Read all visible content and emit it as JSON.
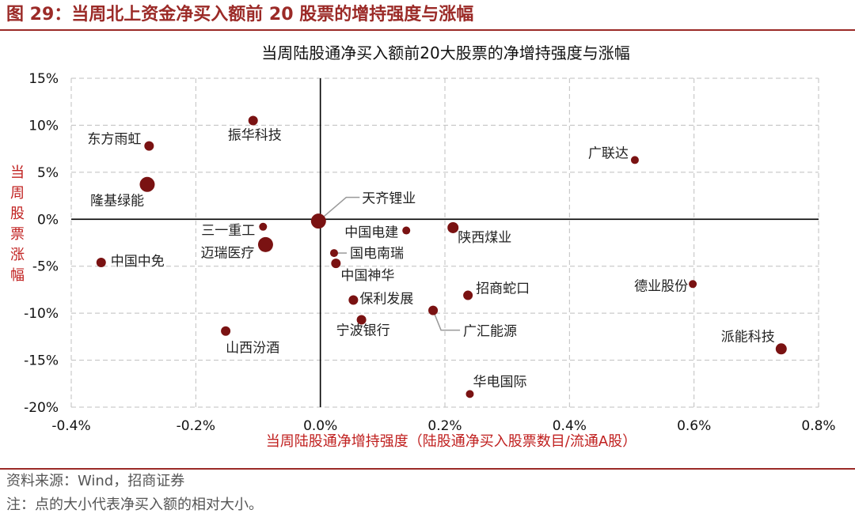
{
  "figure": {
    "title": "图 29：当周北上资金净买入额前 20 股票的增持强度与涨幅",
    "source": "资料来源：Wind，招商证券",
    "note": "注：点的大小代表净买入额的相对大小。"
  },
  "chart_data": {
    "type": "scatter",
    "title": "当周陆股通净买入额前20大股票的净增持强度与涨幅",
    "xlabel": "当周陆股通净增持强度（陆股通净买入股票数目/流通A股）",
    "ylabel": "当周股票涨幅",
    "xlim": [
      -0.4,
      0.8
    ],
    "ylim": [
      -20,
      15
    ],
    "x_ticks": [
      "-0.4%",
      "-0.2%",
      "0.0%",
      "0.2%",
      "0.4%",
      "0.6%",
      "0.8%"
    ],
    "y_ticks": [
      "15%",
      "10%",
      "5%",
      "0%",
      "-5%",
      "-10%",
      "-15%",
      "-20%"
    ],
    "grid": true,
    "colors": {
      "point": "#7a1212",
      "label": "#222222",
      "title_red": "#c0201f",
      "grid": "#bfbfbf"
    },
    "points": [
      {
        "label": "东方雨虹",
        "x": -0.275,
        "y": 7.8,
        "size": 1
      },
      {
        "label": "振华科技",
        "x": -0.108,
        "y": 10.5,
        "size": 1
      },
      {
        "label": "广联达",
        "x": 0.505,
        "y": 6.3,
        "size": 0.7
      },
      {
        "label": "隆基绿能",
        "x": -0.278,
        "y": 3.7,
        "size": 2
      },
      {
        "label": "天齐锂业",
        "x": -0.003,
        "y": -0.2,
        "size": 2
      },
      {
        "label": "三一重工",
        "x": -0.092,
        "y": -0.8,
        "size": 0.7
      },
      {
        "label": "迈瑞医疗",
        "x": -0.088,
        "y": -2.7,
        "size": 2
      },
      {
        "label": "中国中免",
        "x": -0.352,
        "y": -4.6,
        "size": 1
      },
      {
        "label": "中国电建",
        "x": 0.138,
        "y": -1.2,
        "size": 0.7
      },
      {
        "label": "国电南瑞",
        "x": 0.022,
        "y": -3.6,
        "size": 0.7
      },
      {
        "label": "中国神华",
        "x": 0.025,
        "y": -4.7,
        "size": 1
      },
      {
        "label": "陕西煤业",
        "x": 0.213,
        "y": -0.9,
        "size": 1.4
      },
      {
        "label": "招商蛇口",
        "x": 0.237,
        "y": -8.1,
        "size": 1
      },
      {
        "label": "德业股份",
        "x": 0.598,
        "y": -6.9,
        "size": 0.7
      },
      {
        "label": "保利发展",
        "x": 0.053,
        "y": -8.6,
        "size": 1
      },
      {
        "label": "广汇能源",
        "x": 0.181,
        "y": -9.7,
        "size": 1
      },
      {
        "label": "宁波银行",
        "x": 0.066,
        "y": -10.7,
        "size": 1
      },
      {
        "label": "山西汾酒",
        "x": -0.152,
        "y": -11.9,
        "size": 1
      },
      {
        "label": "派能科技",
        "x": 0.74,
        "y": -13.8,
        "size": 1.4
      },
      {
        "label": "华电国际",
        "x": 0.24,
        "y": -18.6,
        "size": 0.7
      }
    ]
  }
}
